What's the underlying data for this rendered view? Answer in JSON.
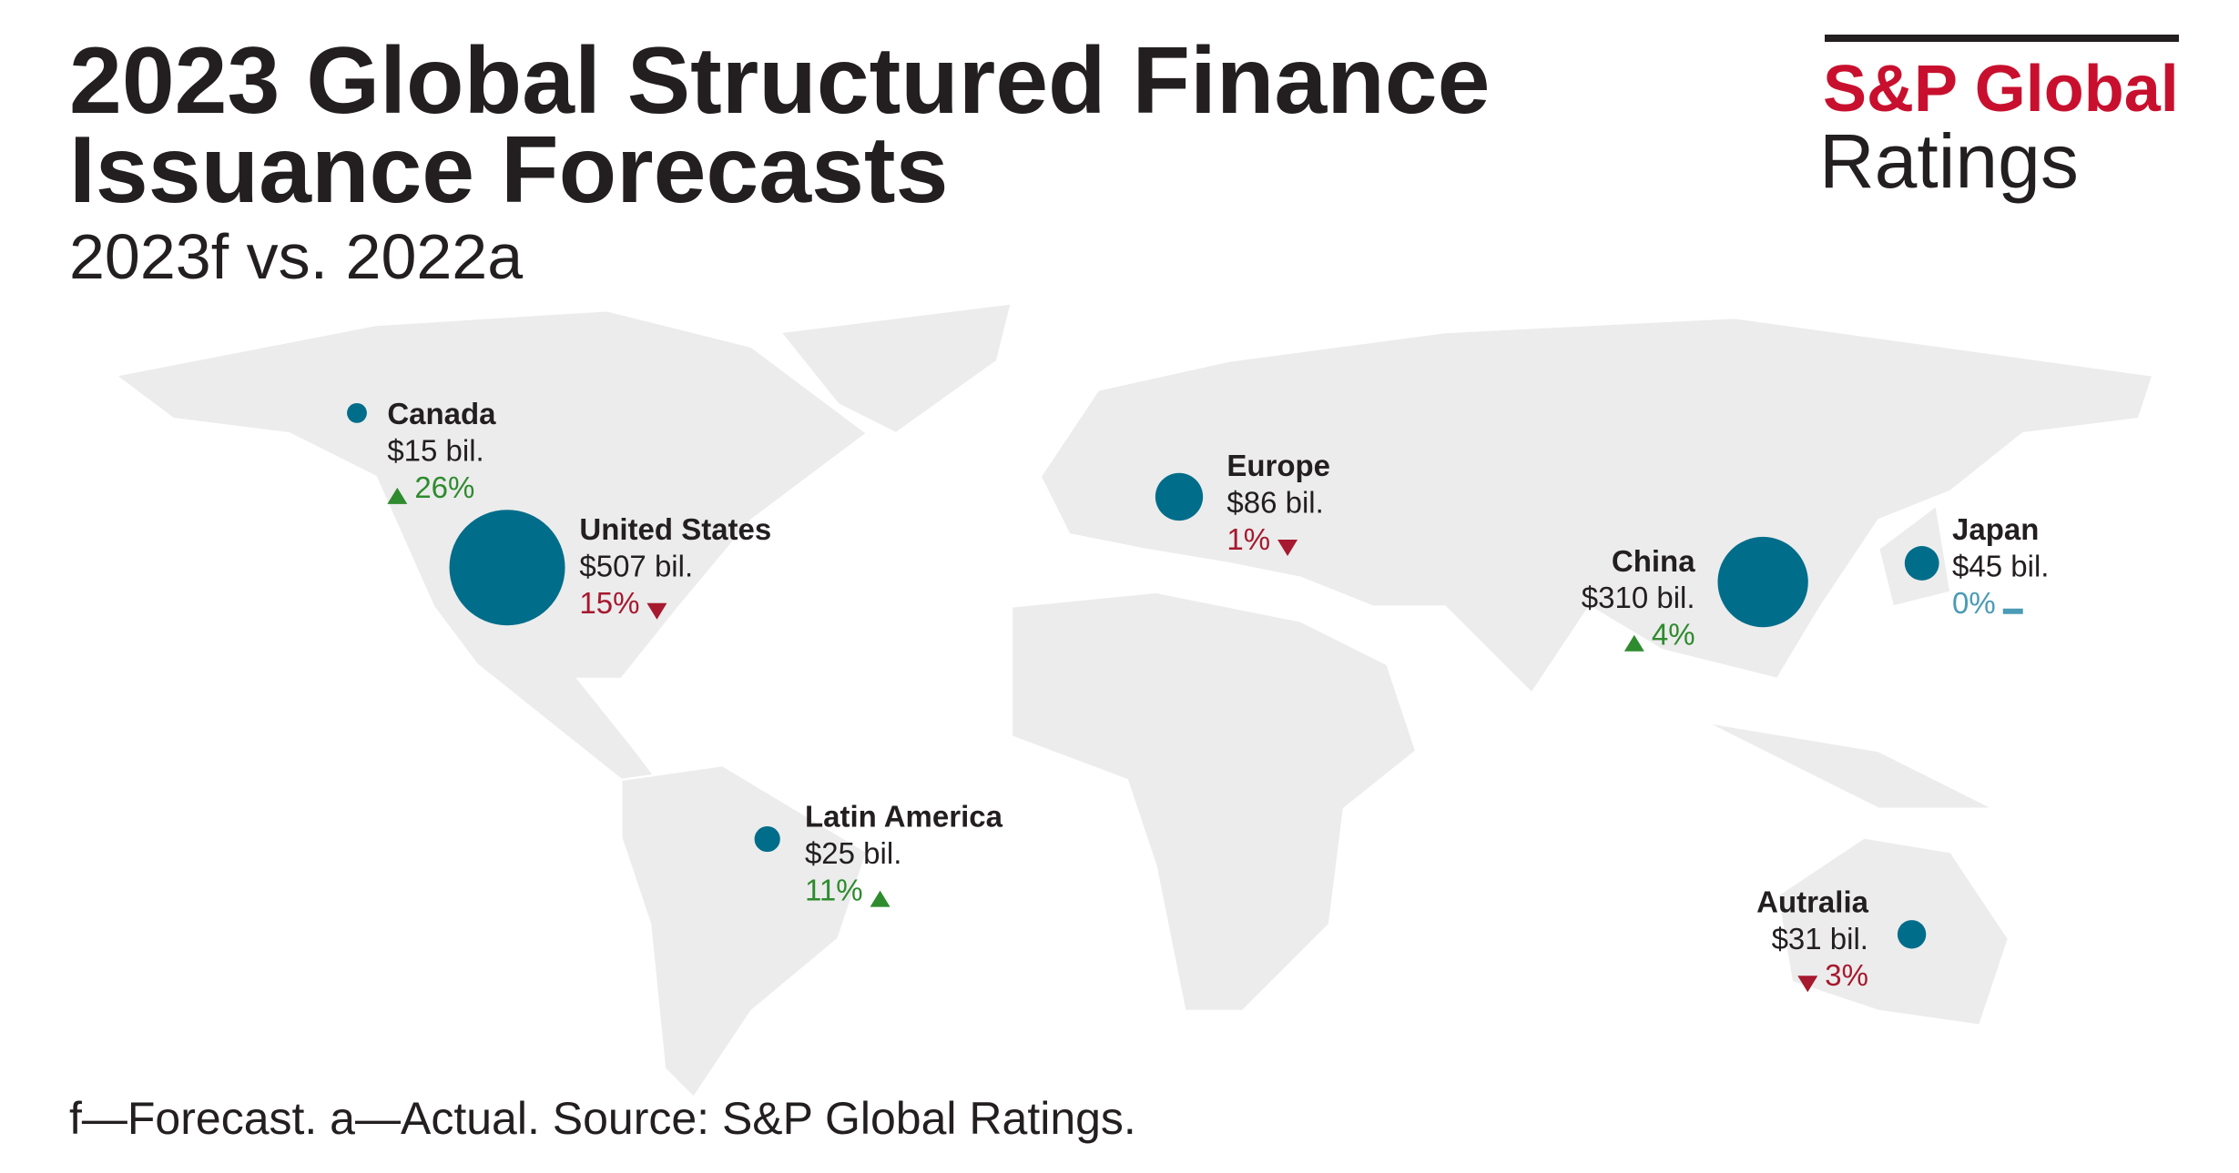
{
  "header": {
    "title": [
      "2023 Global Structured Finance",
      "Issuance Forecasts"
    ],
    "subtitle": "2023f vs. 2022a"
  },
  "logo": {
    "brand": "S&P Global",
    "division": "Ratings"
  },
  "bubble_color": "#006d8a",
  "direction_colors": {
    "up": "#2e8b2e",
    "down": "#a6192e",
    "flat": "#4a9bb5"
  },
  "regions": [
    {
      "name": "Canada",
      "value": 15,
      "value_label": "$15 bil.",
      "change": {
        "value": 26,
        "label": "26%"
      },
      "direction": "up"
    },
    {
      "name": "United States",
      "value": 507,
      "value_label": "$507 bil.",
      "change": {
        "value": 15,
        "label": "15%"
      },
      "direction": "down"
    },
    {
      "name": "Europe",
      "value": 86,
      "value_label": "$86 bil.",
      "change": {
        "value": 1,
        "label": "1%"
      },
      "direction": "down"
    },
    {
      "name": "China",
      "value": 310,
      "value_label": "$310 bil.",
      "change": {
        "value": 4,
        "label": "4%"
      },
      "direction": "up"
    },
    {
      "name": "Japan",
      "value": 45,
      "value_label": "$45 bil.",
      "change": {
        "value": 0,
        "label": "0%"
      },
      "direction": "flat"
    },
    {
      "name": "Latin America",
      "value": 25,
      "value_label": "$25 bil.",
      "change": {
        "value": 11,
        "label": "11%"
      },
      "direction": "up"
    },
    {
      "name": "Autralia",
      "value": 31,
      "value_label": "$31 bil.",
      "change": {
        "value": 3,
        "label": "3%"
      },
      "direction": "down"
    }
  ],
  "footnote": "f—Forecast. a—Actual. Source: S&P Global Ratings."
}
